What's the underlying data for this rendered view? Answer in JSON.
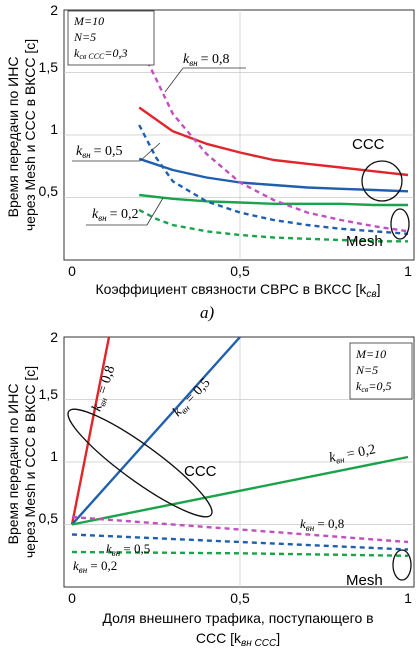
{
  "chart_data": [
    {
      "type": "line",
      "panel_label": "а)",
      "xlabel": "Коэффициент связности СВРС в ВКСС [k",
      "xlabel_sub": "св",
      "xlabel_close": "]",
      "ylabel_line1": "Время передачи по  ИНС",
      "ylabel_line2": "через Mesh и ССС в ВКСС [с]",
      "xlim": [
        0,
        1
      ],
      "ylim": [
        0,
        2
      ],
      "xticks": [
        "0",
        "0,5",
        "1"
      ],
      "yticks": [
        "0,5",
        "1",
        "1,5",
        "2"
      ],
      "grid": true,
      "params": [
        "M=10",
        "N=5",
        "k",
        "св ССС",
        "=0,3"
      ],
      "groups": [
        "ССС",
        "Mesh"
      ],
      "curve_labels": [
        "k",
        "вн",
        "= 0,8",
        "k",
        "вн",
        "= 0,5",
        "k",
        "вн",
        "= 0,2"
      ],
      "series": [
        {
          "group": "ССС",
          "k_vn": 0.8,
          "color": "#e0262b",
          "dash": false,
          "x": [
            0.2,
            0.3,
            0.4,
            0.5,
            0.6,
            0.7,
            0.8,
            0.9,
            1.0
          ],
          "y": [
            1.22,
            1.03,
            0.93,
            0.86,
            0.8,
            0.77,
            0.74,
            0.71,
            0.68
          ]
        },
        {
          "group": "ССС",
          "k_vn": 0.5,
          "color": "#1f5fae",
          "dash": false,
          "x": [
            0.2,
            0.3,
            0.4,
            0.5,
            0.6,
            0.7,
            0.8,
            0.9,
            1.0
          ],
          "y": [
            0.81,
            0.72,
            0.66,
            0.62,
            0.6,
            0.58,
            0.57,
            0.56,
            0.55
          ]
        },
        {
          "group": "ССС",
          "k_vn": 0.2,
          "color": "#1aa34a",
          "dash": false,
          "x": [
            0.2,
            0.3,
            0.4,
            0.5,
            0.6,
            0.7,
            0.8,
            0.9,
            1.0
          ],
          "y": [
            0.52,
            0.49,
            0.47,
            0.46,
            0.45,
            0.45,
            0.45,
            0.44,
            0.44
          ]
        },
        {
          "group": "Mesh",
          "k_vn": 0.8,
          "color": "#c24fc0",
          "dash": true,
          "x": [
            0.15,
            0.2,
            0.25,
            0.3,
            0.4,
            0.5,
            0.6,
            0.7,
            0.8,
            0.9,
            1.0
          ],
          "y": [
            1.97,
            1.72,
            1.45,
            1.17,
            0.85,
            0.62,
            0.48,
            0.38,
            0.32,
            0.27,
            0.23
          ]
        },
        {
          "group": "Mesh",
          "k_vn": 0.5,
          "color": "#1f5fae",
          "dash": true,
          "x": [
            0.2,
            0.25,
            0.3,
            0.4,
            0.5,
            0.6,
            0.7,
            0.8,
            0.9,
            1.0
          ],
          "y": [
            1.08,
            0.82,
            0.63,
            0.47,
            0.38,
            0.32,
            0.28,
            0.25,
            0.23,
            0.21
          ]
        },
        {
          "group": "Mesh",
          "k_vn": 0.2,
          "color": "#1aa34a",
          "dash": true,
          "x": [
            0.2,
            0.25,
            0.3,
            0.4,
            0.5,
            0.6,
            0.7,
            0.8,
            0.9,
            1.0
          ],
          "y": [
            0.4,
            0.33,
            0.28,
            0.23,
            0.2,
            0.18,
            0.17,
            0.16,
            0.15,
            0.15
          ]
        }
      ]
    },
    {
      "type": "line",
      "xlabel_line1": "Доля внешнего трафика, поступающего в",
      "xlabel_line2": "ССС [k",
      "xlabel_sub": "вн ССС",
      "xlabel_close": "]",
      "ylabel_line1": "Время передачи по  ИНС",
      "ylabel_line2": "через Mesh и ССС в ВКСС [с]",
      "xlim": [
        0,
        1
      ],
      "ylim": [
        0,
        2
      ],
      "xticks": [
        "0",
        "0,5",
        "1"
      ],
      "yticks": [
        "0,5",
        "1",
        "1,5",
        "2"
      ],
      "grid": true,
      "params": [
        "M=10",
        "N=5",
        "k",
        "св",
        "=0,5"
      ],
      "groups": [
        "ССС",
        "Mesh"
      ],
      "curve_labels": [
        "k",
        "вн",
        " = 0,8",
        "k",
        "вн",
        " = 0,5",
        "k",
        "вн",
        " = 0,2",
        "k",
        "вн",
        " = 0,8",
        "k",
        "вн",
        " = 0,5",
        "k",
        "вн",
        " = 0,2"
      ],
      "series": [
        {
          "group": "ССС",
          "k_vn": 0.8,
          "color": "#e0262b",
          "dash": false,
          "x": [
            0,
            0.11
          ],
          "y": [
            0.5,
            2.0
          ]
        },
        {
          "group": "ССС",
          "k_vn": 0.5,
          "color": "#1f5fae",
          "dash": false,
          "x": [
            0,
            0.5
          ],
          "y": [
            0.5,
            2.0
          ]
        },
        {
          "group": "ССС",
          "k_vn": 0.2,
          "color": "#1aa34a",
          "dash": false,
          "x": [
            0,
            1.0
          ],
          "y": [
            0.5,
            1.04
          ]
        },
        {
          "group": "Mesh",
          "k_vn": 0.8,
          "color": "#c24fc0",
          "dash": true,
          "x": [
            0,
            0.5,
            1.0
          ],
          "y": [
            0.56,
            0.46,
            0.36
          ]
        },
        {
          "group": "Mesh",
          "k_vn": 0.5,
          "color": "#1f5fae",
          "dash": true,
          "x": [
            0,
            0.5,
            1.0
          ],
          "y": [
            0.42,
            0.36,
            0.3
          ]
        },
        {
          "group": "Mesh",
          "k_vn": 0.2,
          "color": "#1aa34a",
          "dash": true,
          "x": [
            0,
            0.5,
            1.0
          ],
          "y": [
            0.28,
            0.27,
            0.25
          ]
        }
      ]
    }
  ]
}
